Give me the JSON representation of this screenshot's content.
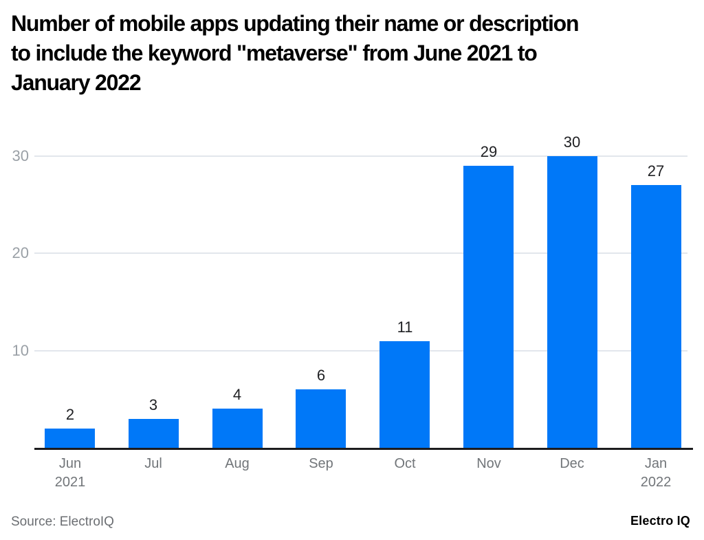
{
  "source": {
    "label": "Source: ElectroIQ"
  },
  "branding": {
    "logo_text": "Electro IQ"
  },
  "colors": {
    "bar": "#0078F8",
    "gridline": "#E2E6EC",
    "axis_line": "#1C1C1E",
    "title_text": "#000000",
    "value_label": "#202124",
    "x_label": "#717579",
    "y_label": "#9AA0A6",
    "source_text": "#6B6E72",
    "background": "#FFFFFF"
  },
  "chart_data": {
    "type": "bar",
    "title": "Number of mobile apps updating their name or description to include the keyword \"metaverse\" from June 2021 to January 2022",
    "title_display": "Number of mobile apps updating their name or description\nto include the keyword \"metaverse\" from June 2021 to\nJanuary 2022",
    "categories": [
      "Jun\n2021",
      "Jul",
      "Aug",
      "Sep",
      "Oct",
      "Nov",
      "Dec",
      "Jan\n2022"
    ],
    "values": [
      2,
      3,
      4,
      6,
      11,
      29,
      30,
      27
    ],
    "xlabel": "",
    "ylabel": "",
    "ylim": [
      0,
      30
    ],
    "yticks": [
      10,
      20,
      30
    ],
    "grid": true,
    "legend": "none",
    "value_labels_shown": true,
    "bar_color": "#0078F8"
  }
}
